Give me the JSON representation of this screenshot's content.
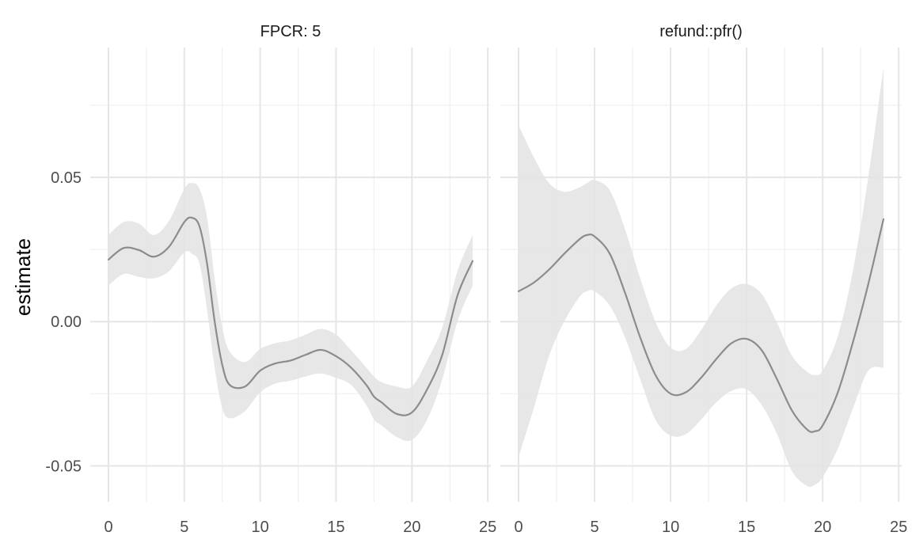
{
  "chart_data": {
    "type": "line",
    "ylabel": "estimate",
    "xlabel": "",
    "shared_y": true,
    "ylim": [
      -0.0625,
      0.095
    ],
    "yticks": [
      -0.05,
      0.0,
      0.05
    ],
    "ytick_labels": [
      "-0.05",
      "0.00",
      "0.05"
    ],
    "grid": true,
    "colors": {
      "line": "#8c8c8c",
      "band": "#e3e3e3"
    },
    "panels": [
      {
        "strip_label": "FPCR: 5",
        "xlim": [
          -1.2,
          25.2
        ],
        "xticks": [
          0,
          5,
          10,
          15,
          20,
          25
        ],
        "xtick_labels": [
          "0",
          "5",
          "10",
          "15",
          "20",
          "25"
        ],
        "series": [
          {
            "x": [
              0,
              1,
              2,
              3,
              4,
              5,
              5.5,
              6,
              6.5,
              7,
              7.5,
              8,
              9,
              10,
              11,
              12,
              13,
              14,
              15,
              16,
              17,
              17.5,
              18,
              19,
              20,
              21,
              22,
              23,
              24
            ],
            "y": [
              0.0215,
              0.0255,
              0.0248,
              0.0225,
              0.026,
              0.0345,
              0.036,
              0.033,
              0.02,
              0.0,
              -0.015,
              -0.022,
              -0.0225,
              -0.017,
              -0.0145,
              -0.0135,
              -0.0115,
              -0.0098,
              -0.012,
              -0.016,
              -0.022,
              -0.026,
              -0.028,
              -0.032,
              -0.0315,
              -0.0235,
              -0.0115,
              0.009,
              0.021
            ],
            "lower": [
              0.0125,
              0.0165,
              0.0155,
              0.015,
              0.0175,
              0.024,
              0.0235,
              0.02,
              0.004,
              -0.016,
              -0.03,
              -0.0335,
              -0.031,
              -0.0245,
              -0.0215,
              -0.0205,
              -0.019,
              -0.018,
              -0.0195,
              -0.022,
              -0.029,
              -0.034,
              -0.036,
              -0.04,
              -0.041,
              -0.034,
              -0.02,
              0.0,
              0.0125
            ],
            "upper": [
              0.03,
              0.0345,
              0.034,
              0.03,
              0.035,
              0.046,
              0.048,
              0.046,
              0.036,
              0.015,
              -0.002,
              -0.0105,
              -0.014,
              -0.0095,
              -0.0075,
              -0.0065,
              -0.0045,
              -0.0025,
              -0.0045,
              -0.01,
              -0.016,
              -0.019,
              -0.021,
              -0.0225,
              -0.0225,
              -0.0135,
              -0.002,
              0.0175,
              0.03
            ]
          }
        ]
      },
      {
        "strip_label": "refund::pfr()",
        "xlim": [
          -1.2,
          25.2
        ],
        "xticks": [
          0,
          5,
          10,
          15,
          20,
          25
        ],
        "xtick_labels": [
          "0",
          "5",
          "10",
          "15",
          "20",
          "25"
        ],
        "series": [
          {
            "x": [
              0,
              1,
              2,
              3,
              4,
              4.5,
              5,
              6,
              7,
              8,
              9,
              10,
              11,
              12,
              13,
              14,
              15,
              16,
              17,
              18,
              19,
              19.5,
              20,
              21,
              22,
              23,
              24
            ],
            "y": [
              0.0105,
              0.0135,
              0.018,
              0.0235,
              0.0285,
              0.03,
              0.0295,
              0.0235,
              0.01,
              -0.0055,
              -0.0185,
              -0.025,
              -0.0245,
              -0.0195,
              -0.013,
              -0.0075,
              -0.006,
              -0.01,
              -0.02,
              -0.031,
              -0.0375,
              -0.038,
              -0.036,
              -0.0245,
              -0.007,
              0.013,
              0.0355
            ],
            "lower": [
              -0.047,
              -0.03,
              -0.012,
              0.0,
              0.0085,
              0.0105,
              0.0105,
              0.0055,
              -0.0055,
              -0.02,
              -0.034,
              -0.0395,
              -0.039,
              -0.034,
              -0.028,
              -0.024,
              -0.0235,
              -0.029,
              -0.039,
              -0.052,
              -0.057,
              -0.0565,
              -0.054,
              -0.044,
              -0.03,
              -0.017,
              -0.016
            ],
            "upper": [
              0.068,
              0.057,
              0.048,
              0.045,
              0.0465,
              0.048,
              0.049,
              0.0455,
              0.032,
              0.015,
              0.0,
              -0.009,
              -0.0095,
              -0.003,
              0.0055,
              0.0115,
              0.013,
              0.0095,
              -0.0005,
              -0.012,
              -0.0175,
              -0.0185,
              -0.017,
              -0.005,
              0.018,
              0.05,
              0.088
            ]
          }
        ]
      }
    ]
  }
}
